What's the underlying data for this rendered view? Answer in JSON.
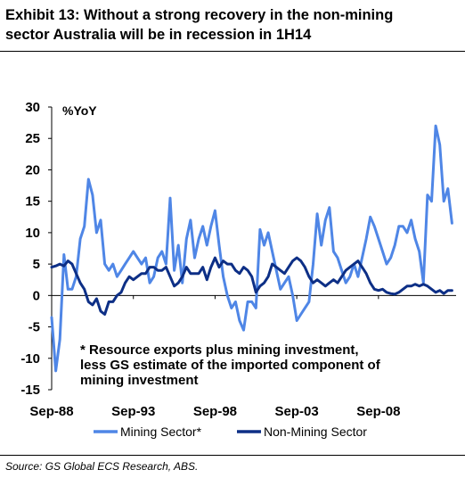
{
  "title_lines": [
    "Exhibit 13: Without a strong recovery in the non-mining",
    "sector Australia will be in recession in 1H14"
  ],
  "source": "Source: GS Global ECS Research, ABS.",
  "colors": {
    "mining": "#4f86e6",
    "non_mining": "#0d2f86",
    "axis": "#000000"
  },
  "chart_data": {
    "type": "line",
    "ylabel": "%YoY",
    "ylim": [
      -15,
      30
    ],
    "yticks": [
      -15,
      -10,
      -5,
      0,
      5,
      10,
      15,
      20,
      25,
      30
    ],
    "y_tick_labels": [
      "-15",
      "-10",
      "-5",
      "0",
      "5",
      "10",
      "15",
      "20",
      "25",
      "30"
    ],
    "xlim": [
      1988.75,
      2013.5
    ],
    "xticks": [
      {
        "label": "Sep-88",
        "x": 1988.75
      },
      {
        "label": "Sep-93",
        "x": 1993.75
      },
      {
        "label": "Sep-98",
        "x": 1998.75
      },
      {
        "label": "Sep-03",
        "x": 2003.75
      },
      {
        "label": "Sep-08",
        "x": 2008.75
      }
    ],
    "grid": false,
    "legend_position": "bottom",
    "annotation_lines": [
      "* Resource exports plus mining investment,",
      "less GS estimate of the imported component of",
      "mining investment"
    ],
    "series": [
      {
        "name": "Mining Sector*",
        "color_key": "mining",
        "points": [
          [
            1988.75,
            -3.5
          ],
          [
            1989.0,
            -12.0
          ],
          [
            1989.25,
            -7.0
          ],
          [
            1989.5,
            6.5
          ],
          [
            1989.75,
            1.0
          ],
          [
            1990.0,
            1.0
          ],
          [
            1990.25,
            3.0
          ],
          [
            1990.5,
            9.0
          ],
          [
            1990.75,
            11.0
          ],
          [
            1991.0,
            18.5
          ],
          [
            1991.25,
            16.0
          ],
          [
            1991.5,
            10.0
          ],
          [
            1991.75,
            12.0
          ],
          [
            1992.0,
            5.0
          ],
          [
            1992.25,
            4.0
          ],
          [
            1992.5,
            5.0
          ],
          [
            1992.75,
            3.0
          ],
          [
            1993.0,
            4.0
          ],
          [
            1993.25,
            5.0
          ],
          [
            1993.5,
            6.0
          ],
          [
            1993.75,
            7.0
          ],
          [
            1994.0,
            6.0
          ],
          [
            1994.25,
            5.0
          ],
          [
            1994.5,
            6.0
          ],
          [
            1994.75,
            2.0
          ],
          [
            1995.0,
            3.0
          ],
          [
            1995.25,
            6.0
          ],
          [
            1995.5,
            7.0
          ],
          [
            1995.75,
            5.0
          ],
          [
            1996.0,
            15.5
          ],
          [
            1996.25,
            4.0
          ],
          [
            1996.5,
            8.0
          ],
          [
            1996.75,
            2.0
          ],
          [
            1997.0,
            9.0
          ],
          [
            1997.25,
            12.0
          ],
          [
            1997.5,
            6.0
          ],
          [
            1997.75,
            9.0
          ],
          [
            1998.0,
            11.0
          ],
          [
            1998.25,
            8.0
          ],
          [
            1998.5,
            11.0
          ],
          [
            1998.75,
            13.5
          ],
          [
            1999.0,
            8.0
          ],
          [
            1999.25,
            3.0
          ],
          [
            1999.5,
            0.0
          ],
          [
            1999.75,
            -2.0
          ],
          [
            2000.0,
            -1.0
          ],
          [
            2000.25,
            -4.0
          ],
          [
            2000.5,
            -5.5
          ],
          [
            2000.75,
            -1.0
          ],
          [
            2001.0,
            -1.0
          ],
          [
            2001.25,
            -2.0
          ],
          [
            2001.5,
            10.5
          ],
          [
            2001.75,
            8.0
          ],
          [
            2002.0,
            10.0
          ],
          [
            2002.25,
            7.0
          ],
          [
            2002.5,
            4.0
          ],
          [
            2002.75,
            1.0
          ],
          [
            2003.0,
            2.0
          ],
          [
            2003.25,
            3.0
          ],
          [
            2003.5,
            0.0
          ],
          [
            2003.75,
            -4.0
          ],
          [
            2004.0,
            -3.0
          ],
          [
            2004.25,
            -2.0
          ],
          [
            2004.5,
            -1.0
          ],
          [
            2004.75,
            5.0
          ],
          [
            2005.0,
            13.0
          ],
          [
            2005.25,
            8.0
          ],
          [
            2005.5,
            12.0
          ],
          [
            2005.75,
            14.0
          ],
          [
            2006.0,
            7.0
          ],
          [
            2006.25,
            6.0
          ],
          [
            2006.5,
            4.0
          ],
          [
            2006.75,
            2.0
          ],
          [
            2007.0,
            3.0
          ],
          [
            2007.25,
            5.0
          ],
          [
            2007.5,
            3.0
          ],
          [
            2007.75,
            6.0
          ],
          [
            2008.0,
            9.0
          ],
          [
            2008.25,
            12.5
          ],
          [
            2008.5,
            11.0
          ],
          [
            2008.75,
            9.0
          ],
          [
            2009.0,
            7.0
          ],
          [
            2009.25,
            5.0
          ],
          [
            2009.5,
            6.0
          ],
          [
            2009.75,
            8.0
          ],
          [
            2010.0,
            11.0
          ],
          [
            2010.25,
            11.0
          ],
          [
            2010.5,
            10.0
          ],
          [
            2010.75,
            12.0
          ],
          [
            2011.0,
            9.0
          ],
          [
            2011.25,
            7.0
          ],
          [
            2011.5,
            2.0
          ],
          [
            2011.75,
            16.0
          ],
          [
            2012.0,
            15.0
          ],
          [
            2012.25,
            27.0
          ],
          [
            2012.5,
            24.0
          ],
          [
            2012.75,
            15.0
          ],
          [
            2013.0,
            17.0
          ],
          [
            2013.25,
            11.5
          ]
        ]
      },
      {
        "name": "Non-Mining Sector",
        "color_key": "non_mining",
        "points": [
          [
            1988.75,
            4.5
          ],
          [
            1989.0,
            4.7
          ],
          [
            1989.25,
            5.0
          ],
          [
            1989.5,
            4.7
          ],
          [
            1989.75,
            5.5
          ],
          [
            1990.0,
            5.0
          ],
          [
            1990.25,
            3.5
          ],
          [
            1990.5,
            2.0
          ],
          [
            1990.75,
            1.0
          ],
          [
            1991.0,
            -1.0
          ],
          [
            1991.25,
            -1.5
          ],
          [
            1991.5,
            -0.5
          ],
          [
            1991.75,
            -2.5
          ],
          [
            1992.0,
            -3.0
          ],
          [
            1992.25,
            -1.0
          ],
          [
            1992.5,
            -1.0
          ],
          [
            1992.75,
            0.0
          ],
          [
            1993.0,
            0.5
          ],
          [
            1993.25,
            2.0
          ],
          [
            1993.5,
            3.0
          ],
          [
            1993.75,
            2.5
          ],
          [
            1994.0,
            3.0
          ],
          [
            1994.25,
            3.5
          ],
          [
            1994.5,
            3.5
          ],
          [
            1994.75,
            4.5
          ],
          [
            1995.0,
            4.5
          ],
          [
            1995.25,
            4.0
          ],
          [
            1995.5,
            4.0
          ],
          [
            1995.75,
            4.5
          ],
          [
            1996.0,
            3.0
          ],
          [
            1996.25,
            1.5
          ],
          [
            1996.5,
            2.0
          ],
          [
            1996.75,
            3.0
          ],
          [
            1997.0,
            4.5
          ],
          [
            1997.25,
            3.5
          ],
          [
            1997.5,
            3.5
          ],
          [
            1997.75,
            3.5
          ],
          [
            1998.0,
            4.5
          ],
          [
            1998.25,
            2.5
          ],
          [
            1998.5,
            4.5
          ],
          [
            1998.75,
            6.0
          ],
          [
            1999.0,
            4.5
          ],
          [
            1999.25,
            5.5
          ],
          [
            1999.5,
            5.0
          ],
          [
            1999.75,
            5.0
          ],
          [
            2000.0,
            4.0
          ],
          [
            2000.25,
            3.5
          ],
          [
            2000.5,
            4.5
          ],
          [
            2000.75,
            4.0
          ],
          [
            2001.0,
            3.0
          ],
          [
            2001.25,
            0.5
          ],
          [
            2001.5,
            1.5
          ],
          [
            2001.75,
            2.0
          ],
          [
            2002.0,
            3.0
          ],
          [
            2002.25,
            5.0
          ],
          [
            2002.5,
            4.5
          ],
          [
            2002.75,
            4.0
          ],
          [
            2003.0,
            3.5
          ],
          [
            2003.25,
            4.5
          ],
          [
            2003.5,
            5.5
          ],
          [
            2003.75,
            6.0
          ],
          [
            2004.0,
            5.5
          ],
          [
            2004.25,
            4.5
          ],
          [
            2004.5,
            3.0
          ],
          [
            2004.75,
            2.0
          ],
          [
            2005.0,
            2.5
          ],
          [
            2005.25,
            2.0
          ],
          [
            2005.5,
            1.5
          ],
          [
            2005.75,
            2.0
          ],
          [
            2006.0,
            2.5
          ],
          [
            2006.25,
            2.0
          ],
          [
            2006.5,
            3.0
          ],
          [
            2006.75,
            4.0
          ],
          [
            2007.0,
            4.5
          ],
          [
            2007.25,
            5.0
          ],
          [
            2007.5,
            5.5
          ],
          [
            2007.75,
            4.5
          ],
          [
            2008.0,
            3.5
          ],
          [
            2008.25,
            2.0
          ],
          [
            2008.5,
            1.0
          ],
          [
            2008.75,
            0.8
          ],
          [
            2009.0,
            1.0
          ],
          [
            2009.25,
            0.5
          ],
          [
            2009.5,
            0.3
          ],
          [
            2009.75,
            0.2
          ],
          [
            2010.0,
            0.5
          ],
          [
            2010.25,
            1.0
          ],
          [
            2010.5,
            1.5
          ],
          [
            2010.75,
            1.5
          ],
          [
            2011.0,
            1.8
          ],
          [
            2011.25,
            1.5
          ],
          [
            2011.5,
            1.8
          ],
          [
            2011.75,
            1.5
          ],
          [
            2012.0,
            1.0
          ],
          [
            2012.25,
            0.5
          ],
          [
            2012.5,
            0.8
          ],
          [
            2012.75,
            0.3
          ],
          [
            2013.0,
            0.8
          ],
          [
            2013.25,
            0.8
          ]
        ]
      }
    ]
  }
}
